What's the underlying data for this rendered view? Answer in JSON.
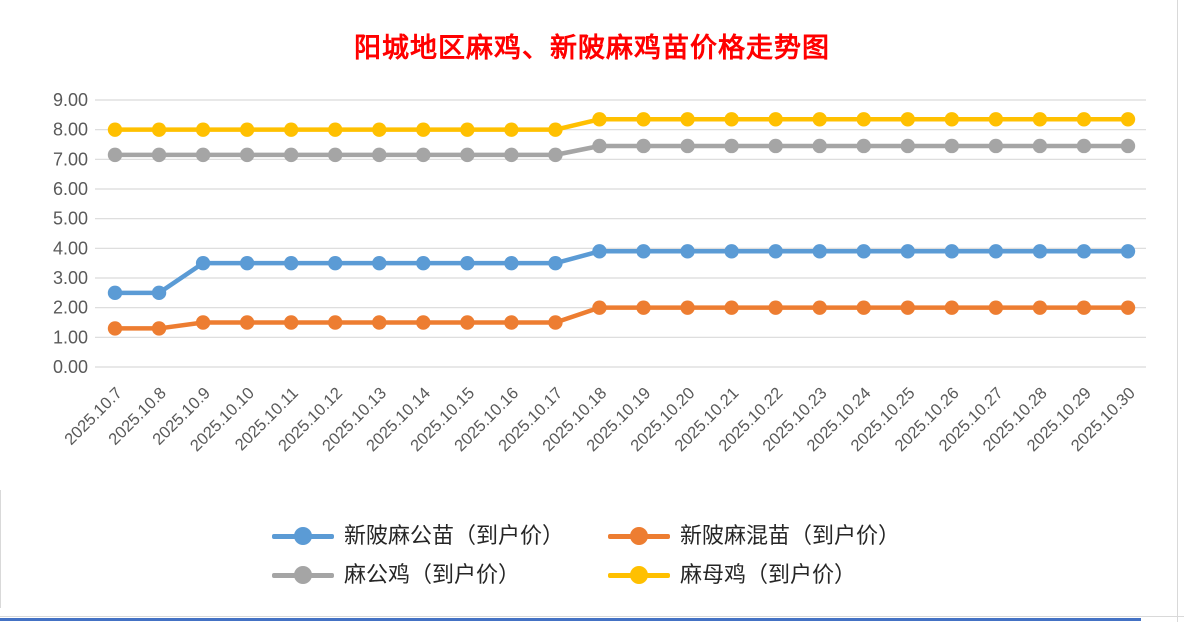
{
  "chart_data": {
    "type": "line",
    "title": "阳城地区麻鸡、新陂麻鸡苗价格走势图",
    "categories": [
      "2025.10.7",
      "2025.10.8",
      "2025.10.9",
      "2025.10.10",
      "2025.10.11",
      "2025.10.12",
      "2025.10.13",
      "2025.10.14",
      "2025.10.15",
      "2025.10.16",
      "2025.10.17",
      "2025.10.18",
      "2025.10.19",
      "2025.10.20",
      "2025.10.21",
      "2025.10.22",
      "2025.10.23",
      "2025.10.24",
      "2025.10.25",
      "2025.10.26",
      "2025.10.27",
      "2025.10.28",
      "2025.10.29",
      "2025.10.30"
    ],
    "series": [
      {
        "name": "新陂麻公苗（到户价）",
        "color": "#5B9BD5",
        "values": [
          2.5,
          2.5,
          3.5,
          3.5,
          3.5,
          3.5,
          3.5,
          3.5,
          3.5,
          3.5,
          3.5,
          3.9,
          3.9,
          3.9,
          3.9,
          3.9,
          3.9,
          3.9,
          3.9,
          3.9,
          3.9,
          3.9,
          3.9,
          3.9
        ]
      },
      {
        "name": "新陂麻混苗（到户价）",
        "color": "#ED7D31",
        "values": [
          1.3,
          1.3,
          1.5,
          1.5,
          1.5,
          1.5,
          1.5,
          1.5,
          1.5,
          1.5,
          1.5,
          2.0,
          2.0,
          2.0,
          2.0,
          2.0,
          2.0,
          2.0,
          2.0,
          2.0,
          2.0,
          2.0,
          2.0,
          2.0
        ]
      },
      {
        "name": "麻公鸡（到户价）",
        "color": "#A5A5A5",
        "values": [
          7.15,
          7.15,
          7.15,
          7.15,
          7.15,
          7.15,
          7.15,
          7.15,
          7.15,
          7.15,
          7.15,
          7.45,
          7.45,
          7.45,
          7.45,
          7.45,
          7.45,
          7.45,
          7.45,
          7.45,
          7.45,
          7.45,
          7.45,
          7.45
        ]
      },
      {
        "name": "麻母鸡（到户价）",
        "color": "#FFC000",
        "values": [
          8.0,
          8.0,
          8.0,
          8.0,
          8.0,
          8.0,
          8.0,
          8.0,
          8.0,
          8.0,
          8.0,
          8.35,
          8.35,
          8.35,
          8.35,
          8.35,
          8.35,
          8.35,
          8.35,
          8.35,
          8.35,
          8.35,
          8.35,
          8.35
        ]
      }
    ],
    "y_ticks": [
      "0.00",
      "1.00",
      "2.00",
      "3.00",
      "4.00",
      "5.00",
      "6.00",
      "7.00",
      "8.00",
      "9.00"
    ],
    "ylim": [
      0,
      9
    ],
    "xlabel": "",
    "ylabel": "",
    "grid": true,
    "legend_position": "bottom"
  },
  "colors": {
    "title": "#FF0000",
    "axis_text": "#595959",
    "legend_text": "#262626",
    "gridline": "#D9D9D9",
    "bottom_line": "#4472C4",
    "cell_border": "#D9D9D9"
  }
}
